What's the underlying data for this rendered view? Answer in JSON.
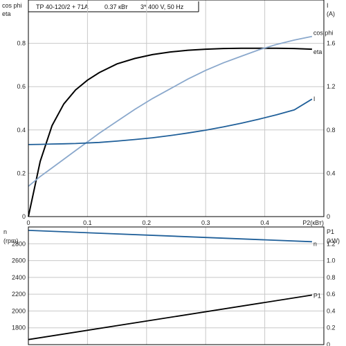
{
  "header": {
    "model": "TP 40-120/2 + 71A",
    "power": "0.37 кВт",
    "supply": "3* 400 V, 50 Hz"
  },
  "colors": {
    "eta": "#000000",
    "cos_phi": "#8aa8cc",
    "current": "#1f5f99",
    "speed": "#1f5f99",
    "p1": "#000000",
    "grid": "#c8c8c8"
  },
  "chart_data": [
    {
      "type": "line",
      "x": [
        0,
        0.02,
        0.04,
        0.06,
        0.08,
        0.1,
        0.12,
        0.15,
        0.18,
        0.21,
        0.24,
        0.27,
        0.3,
        0.33,
        0.36,
        0.39,
        0.42,
        0.45,
        0.48
      ],
      "series": [
        {
          "name": "eta",
          "axis": "left",
          "values": [
            0,
            0.255,
            0.42,
            0.52,
            0.585,
            0.63,
            0.665,
            0.705,
            0.73,
            0.748,
            0.76,
            0.768,
            0.773,
            0.776,
            0.777,
            0.777,
            0.777,
            0.776,
            0.773
          ]
        },
        {
          "name": "cos phi",
          "axis": "left",
          "values": [
            0.14,
            0.185,
            0.225,
            0.265,
            0.305,
            0.345,
            0.385,
            0.44,
            0.495,
            0.545,
            0.59,
            0.635,
            0.675,
            0.71,
            0.74,
            0.77,
            0.795,
            0.815,
            0.832
          ]
        },
        {
          "name": "I",
          "axis": "right",
          "values": [
            0.665,
            0.667,
            0.67,
            0.672,
            0.675,
            0.68,
            0.685,
            0.697,
            0.712,
            0.728,
            0.748,
            0.772,
            0.798,
            0.828,
            0.862,
            0.9,
            0.94,
            0.985,
            1.085
          ]
        }
      ],
      "xlabel": "P2(кВт)",
      "xlim": [
        0,
        0.5
      ],
      "xticks": [
        "0",
        "0.1",
        "0.2",
        "0.3",
        "0.4"
      ],
      "ylabel_left": "cos phi\neta",
      "ylim_left": [
        0,
        1.0
      ],
      "yticks_left": [
        "0",
        "0.2",
        "0.4",
        "0.6",
        "0.8"
      ],
      "ylabel_right": "I\n(A)",
      "ylim_right": [
        0,
        2.0
      ],
      "yticks_right": [
        "0",
        "0.4",
        "0.8",
        "1.2",
        "1.6"
      ],
      "grid": true
    },
    {
      "type": "line",
      "x": [
        0,
        0.48
      ],
      "series": [
        {
          "name": "n",
          "axis": "left",
          "values": [
            2960,
            2825
          ]
        },
        {
          "name": "P1",
          "axis": "right",
          "values": [
            0.06,
            0.59
          ]
        }
      ],
      "ylabel_left": "n\n(rpm)",
      "ylim_left": [
        1600,
        3000
      ],
      "yticks_left": [
        "1800",
        "2000",
        "2200",
        "2400",
        "2600",
        "2800"
      ],
      "ylabel_right": "P1\n(kW)",
      "ylim_right": [
        0,
        1.4
      ],
      "yticks_right": [
        "0",
        "0.2",
        "0.4",
        "0.6",
        "0.8",
        "1.0",
        "1.2"
      ],
      "grid": true
    }
  ]
}
